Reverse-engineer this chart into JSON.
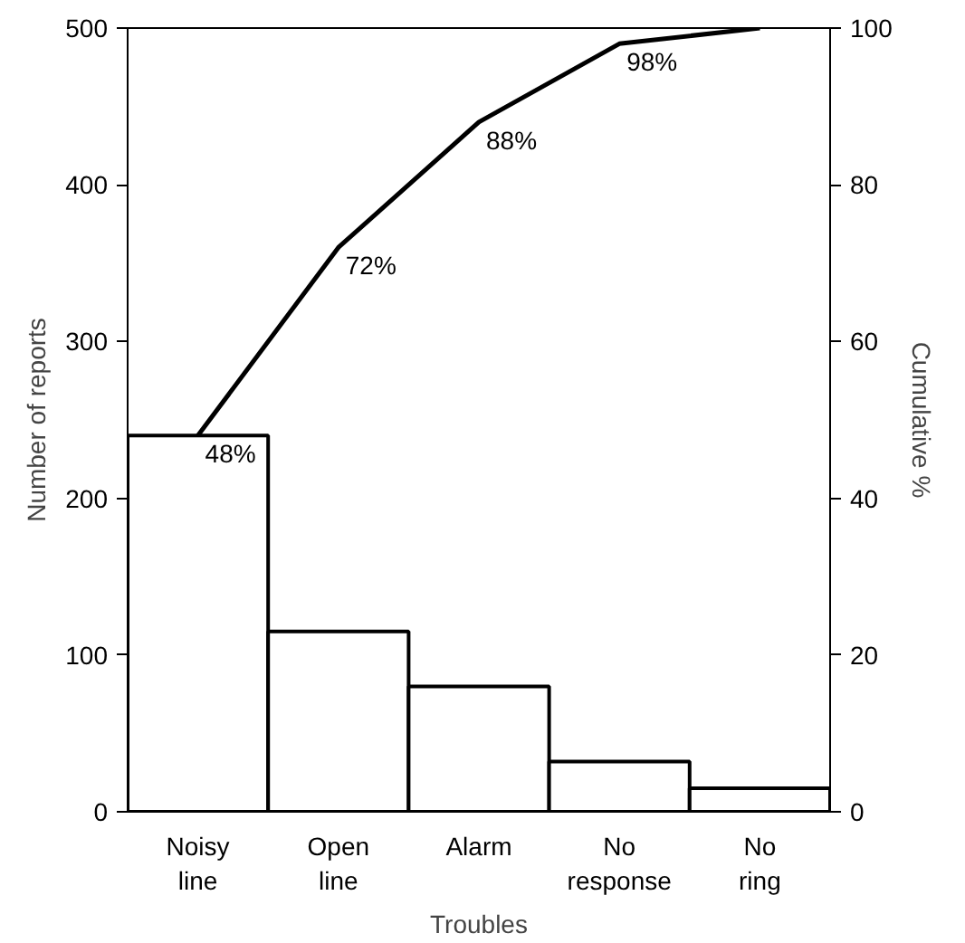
{
  "chart_data": {
    "type": "bar",
    "xlabel": "Troubles",
    "ylabel": "Number of reports",
    "y2label": "Cumulative %",
    "categories": [
      "Noisy line",
      "Open line",
      "Alarm",
      "No response",
      "No ring"
    ],
    "series": [
      {
        "color": "#ffffff",
        "values": [
          240,
          115,
          80,
          32,
          15
        ]
      },
      {
        "type": "line",
        "axis": "y2",
        "color": "#000000",
        "values": [
          48,
          72,
          88,
          98,
          100
        ],
        "value_labels": [
          "48%",
          "72%",
          "88%",
          "98%",
          null
        ]
      }
    ],
    "ylim": [
      0,
      500
    ],
    "yticks": [
      0,
      100,
      200,
      300,
      400,
      500
    ],
    "y2lim": [
      0,
      100
    ],
    "y2ticks": [
      0,
      20,
      40,
      60,
      80,
      100
    ],
    "grid": false
  }
}
